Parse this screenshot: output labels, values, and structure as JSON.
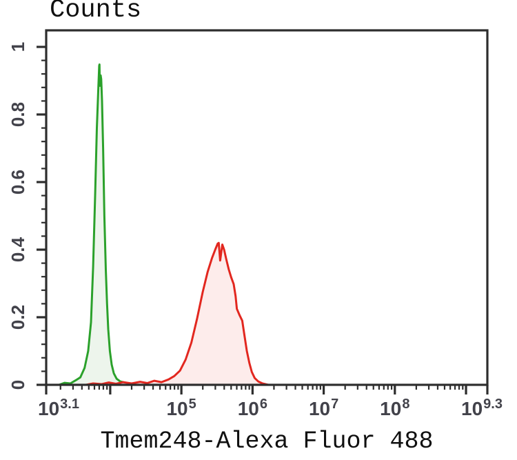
{
  "title": "Counts",
  "x_axis_title": "Tmem248-Alexa Fluor 488",
  "colors": {
    "axis": "#2d2d2d",
    "tick_label": "#42424a",
    "title_text": "#101010",
    "green_stroke": "#2ba12b",
    "green_fill": "#edf5ec",
    "red_stroke": "#e2271f",
    "red_fill": "#fdeceb"
  },
  "chart_data": {
    "type": "area",
    "subtype": "flow-cytometry-histogram-overlay",
    "title": "Counts",
    "xlabel": "Tmem248-Alexa Fluor 488",
    "ylabel": "Counts",
    "x_scale": "log10",
    "xlim_log10": [
      3.1,
      9.3
    ],
    "ylim": [
      0,
      1
    ],
    "grid": false,
    "legend": "none",
    "x_major_ticks_log10": [
      3.1,
      4,
      5,
      6,
      7,
      8,
      9,
      9.3
    ],
    "x_tick_labels": [
      {
        "base": "10",
        "exp": "3.1",
        "log10": 3.1,
        "dx": 18
      },
      {
        "base": "10",
        "exp": "5",
        "log10": 5,
        "dx": 0
      },
      {
        "base": "10",
        "exp": "6",
        "log10": 6,
        "dx": 0
      },
      {
        "base": "10",
        "exp": "7",
        "log10": 7,
        "dx": 0
      },
      {
        "base": "10",
        "exp": "8",
        "log10": 8,
        "dx": 0
      },
      {
        "base": "10",
        "exp": "9.3",
        "log10": 9.3,
        "dx": -8
      }
    ],
    "y_major_ticks": [
      0,
      0.2,
      0.4,
      0.6,
      0.8,
      1
    ],
    "y_tick_labels": [
      "0",
      "0.2",
      "0.4",
      "0.6",
      "0.8",
      "1"
    ],
    "y_minor_tick_step": 0.04,
    "series": [
      {
        "name": "green-peak",
        "peak_log10_x": 3.85,
        "peak_height": 0.95,
        "stroke": "#2ba12b",
        "fill": "#edf5ec",
        "points_log10x_y": [
          [
            3.28,
            0
          ],
          [
            3.36,
            0.006
          ],
          [
            3.44,
            0.004
          ],
          [
            3.52,
            0.014
          ],
          [
            3.58,
            0.022
          ],
          [
            3.64,
            0.05
          ],
          [
            3.69,
            0.1
          ],
          [
            3.73,
            0.185
          ],
          [
            3.76,
            0.35
          ],
          [
            3.788,
            0.56
          ],
          [
            3.812,
            0.76
          ],
          [
            3.833,
            0.88
          ],
          [
            3.845,
            0.944
          ],
          [
            3.849,
            0.948
          ],
          [
            3.853,
            0.9
          ],
          [
            3.858,
            0.885
          ],
          [
            3.865,
            0.916
          ],
          [
            3.873,
            0.905
          ],
          [
            3.885,
            0.84
          ],
          [
            3.9,
            0.7
          ],
          [
            3.918,
            0.5
          ],
          [
            3.938,
            0.34
          ],
          [
            3.955,
            0.24
          ],
          [
            3.972,
            0.165
          ],
          [
            3.995,
            0.1
          ],
          [
            4.02,
            0.06
          ],
          [
            4.05,
            0.034
          ],
          [
            4.09,
            0.018
          ],
          [
            4.14,
            0.01
          ],
          [
            4.22,
            0.006
          ],
          [
            4.32,
            0.003
          ],
          [
            4.42,
            0
          ]
        ]
      },
      {
        "name": "red-peak",
        "peak_log10_x": 5.52,
        "peak_height": 0.42,
        "stroke": "#e2271f",
        "fill": "#fdeceb",
        "points_log10x_y": [
          [
            3.66,
            0
          ],
          [
            3.76,
            0.004
          ],
          [
            3.88,
            0.002
          ],
          [
            3.98,
            0.007
          ],
          [
            4.08,
            0.003
          ],
          [
            4.18,
            0.008
          ],
          [
            4.3,
            0.004
          ],
          [
            4.42,
            0.009
          ],
          [
            4.52,
            0.005
          ],
          [
            4.62,
            0.012
          ],
          [
            4.72,
            0.008
          ],
          [
            4.82,
            0.016
          ],
          [
            4.9,
            0.026
          ],
          [
            4.98,
            0.042
          ],
          [
            5.06,
            0.075
          ],
          [
            5.14,
            0.125
          ],
          [
            5.22,
            0.195
          ],
          [
            5.3,
            0.275
          ],
          [
            5.37,
            0.335
          ],
          [
            5.43,
            0.375
          ],
          [
            5.475,
            0.4
          ],
          [
            5.51,
            0.418
          ],
          [
            5.525,
            0.42
          ],
          [
            5.545,
            0.368
          ],
          [
            5.575,
            0.415
          ],
          [
            5.6,
            0.4
          ],
          [
            5.63,
            0.372
          ],
          [
            5.665,
            0.342
          ],
          [
            5.7,
            0.318
          ],
          [
            5.735,
            0.298
          ],
          [
            5.762,
            0.262
          ],
          [
            5.78,
            0.225
          ],
          [
            5.82,
            0.205
          ],
          [
            5.855,
            0.19
          ],
          [
            5.885,
            0.148
          ],
          [
            5.92,
            0.1
          ],
          [
            5.955,
            0.065
          ],
          [
            5.99,
            0.038
          ],
          [
            6.03,
            0.02
          ],
          [
            6.08,
            0.01
          ],
          [
            6.14,
            0.004
          ],
          [
            6.22,
            0
          ]
        ]
      }
    ]
  }
}
